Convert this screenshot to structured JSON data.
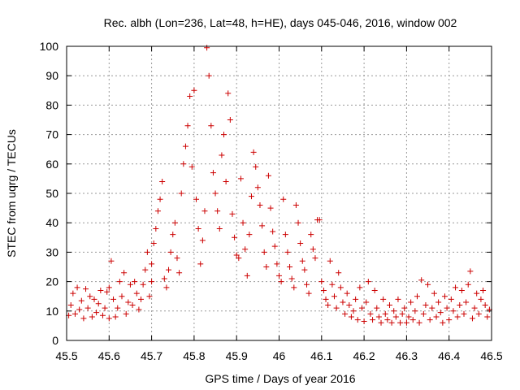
{
  "chart_data": {
    "type": "scatter",
    "title": "Rec. albh (Lon=236, Lat=48, h=HE), days 045-046, 2016, window 002",
    "xlabel": "GPS time / Days of year 2016",
    "ylabel": "STEC from uqrg / TECUs",
    "xlim": [
      45.5,
      46.5
    ],
    "ylim": [
      0,
      100
    ],
    "xticks": [
      "45.5",
      "45.6",
      "45.7",
      "45.8",
      "45.9",
      "46",
      "46.1",
      "46.2",
      "46.3",
      "46.4",
      "46.5"
    ],
    "yticks": [
      "0",
      "10",
      "20",
      "30",
      "40",
      "50",
      "60",
      "70",
      "80",
      "90",
      "100"
    ],
    "grid": true,
    "marker": "plus",
    "color": "#cc0000",
    "series": [
      {
        "name": "STEC",
        "points": [
          [
            45.505,
            8.5
          ],
          [
            45.51,
            12
          ],
          [
            45.515,
            16
          ],
          [
            45.52,
            9
          ],
          [
            45.525,
            18
          ],
          [
            45.53,
            10.5
          ],
          [
            45.535,
            13.5
          ],
          [
            45.54,
            7.5
          ],
          [
            45.545,
            17.5
          ],
          [
            45.55,
            11
          ],
          [
            45.555,
            15
          ],
          [
            45.56,
            8
          ],
          [
            45.565,
            14
          ],
          [
            45.57,
            9.5
          ],
          [
            45.575,
            12.5
          ],
          [
            45.58,
            17
          ],
          [
            45.585,
            8.5
          ],
          [
            45.59,
            11
          ],
          [
            45.595,
            16.5
          ],
          [
            45.6,
            7.5
          ],
          [
            45.6,
            18
          ],
          [
            45.605,
            27
          ],
          [
            45.61,
            14
          ],
          [
            45.615,
            8
          ],
          [
            45.62,
            11
          ],
          [
            45.625,
            20
          ],
          [
            45.63,
            15
          ],
          [
            45.635,
            23
          ],
          [
            45.64,
            9
          ],
          [
            45.645,
            13
          ],
          [
            45.65,
            19
          ],
          [
            45.655,
            12
          ],
          [
            45.66,
            20
          ],
          [
            45.665,
            16
          ],
          [
            45.67,
            10.5
          ],
          [
            45.675,
            14
          ],
          [
            45.68,
            19
          ],
          [
            45.685,
            24
          ],
          [
            45.69,
            30
          ],
          [
            45.695,
            15
          ],
          [
            45.7,
            20
          ],
          [
            45.7,
            26
          ],
          [
            45.705,
            33
          ],
          [
            45.71,
            38
          ],
          [
            45.715,
            44
          ],
          [
            45.72,
            48
          ],
          [
            45.725,
            54
          ],
          [
            45.73,
            21
          ],
          [
            45.735,
            18
          ],
          [
            45.74,
            24
          ],
          [
            45.745,
            30
          ],
          [
            45.75,
            36
          ],
          [
            45.755,
            40
          ],
          [
            45.76,
            28
          ],
          [
            45.765,
            23
          ],
          [
            45.77,
            50
          ],
          [
            45.775,
            60
          ],
          [
            45.78,
            66
          ],
          [
            45.785,
            73
          ],
          [
            45.79,
            83
          ],
          [
            45.795,
            59
          ],
          [
            45.8,
            85
          ],
          [
            45.805,
            48
          ],
          [
            45.81,
            38
          ],
          [
            45.815,
            26
          ],
          [
            45.82,
            34
          ],
          [
            45.825,
            44
          ],
          [
            45.83,
            99.5
          ],
          [
            45.835,
            90
          ],
          [
            45.84,
            73
          ],
          [
            45.845,
            57
          ],
          [
            45.85,
            50
          ],
          [
            45.855,
            44
          ],
          [
            45.86,
            38
          ],
          [
            45.865,
            63
          ],
          [
            45.87,
            70
          ],
          [
            45.875,
            54
          ],
          [
            45.88,
            84
          ],
          [
            45.885,
            75
          ],
          [
            45.89,
            43
          ],
          [
            45.895,
            35
          ],
          [
            45.9,
            29
          ],
          [
            45.905,
            28
          ],
          [
            45.91,
            55
          ],
          [
            45.915,
            40
          ],
          [
            45.92,
            31
          ],
          [
            45.925,
            22
          ],
          [
            45.93,
            36
          ],
          [
            45.935,
            49
          ],
          [
            45.94,
            64
          ],
          [
            45.945,
            59
          ],
          [
            45.95,
            52
          ],
          [
            45.955,
            46
          ],
          [
            45.96,
            39
          ],
          [
            45.965,
            30
          ],
          [
            45.97,
            25
          ],
          [
            45.975,
            56
          ],
          [
            45.98,
            45
          ],
          [
            45.985,
            37
          ],
          [
            45.99,
            32
          ],
          [
            45.995,
            26
          ],
          [
            46.0,
            22
          ],
          [
            46.005,
            20
          ],
          [
            46.01,
            48
          ],
          [
            46.015,
            36
          ],
          [
            46.02,
            30
          ],
          [
            46.025,
            25
          ],
          [
            46.03,
            21
          ],
          [
            46.035,
            18
          ],
          [
            46.04,
            46
          ],
          [
            46.045,
            40
          ],
          [
            46.05,
            33
          ],
          [
            46.055,
            27
          ],
          [
            46.06,
            24
          ],
          [
            46.065,
            19
          ],
          [
            46.07,
            16
          ],
          [
            46.075,
            36
          ],
          [
            46.08,
            31
          ],
          [
            46.085,
            28
          ],
          [
            46.09,
            41
          ],
          [
            46.095,
            41
          ],
          [
            46.1,
            20
          ],
          [
            46.105,
            17
          ],
          [
            46.11,
            14
          ],
          [
            46.115,
            12
          ],
          [
            46.12,
            27
          ],
          [
            46.125,
            19
          ],
          [
            46.13,
            15
          ],
          [
            46.135,
            11
          ],
          [
            46.14,
            23
          ],
          [
            46.145,
            18
          ],
          [
            46.15,
            13
          ],
          [
            46.155,
            9
          ],
          [
            46.16,
            16
          ],
          [
            46.165,
            12
          ],
          [
            46.17,
            8
          ],
          [
            46.175,
            10
          ],
          [
            46.18,
            14
          ],
          [
            46.185,
            7
          ],
          [
            46.19,
            18
          ],
          [
            46.195,
            11
          ],
          [
            46.2,
            6.5
          ],
          [
            46.205,
            13
          ],
          [
            46.21,
            20
          ],
          [
            46.215,
            9
          ],
          [
            46.22,
            7
          ],
          [
            46.225,
            17
          ],
          [
            46.23,
            11
          ],
          [
            46.235,
            8
          ],
          [
            46.24,
            6
          ],
          [
            46.245,
            14
          ],
          [
            46.25,
            9
          ],
          [
            46.255,
            7
          ],
          [
            46.26,
            12
          ],
          [
            46.265,
            6
          ],
          [
            46.27,
            10
          ],
          [
            46.275,
            8
          ],
          [
            46.28,
            14
          ],
          [
            46.285,
            6
          ],
          [
            46.29,
            9
          ],
          [
            46.295,
            11
          ],
          [
            46.3,
            6
          ],
          [
            46.305,
            8
          ],
          [
            46.31,
            13
          ],
          [
            46.315,
            7
          ],
          [
            46.32,
            10
          ],
          [
            46.325,
            15
          ],
          [
            46.33,
            6
          ],
          [
            46.335,
            20.5
          ],
          [
            46.34,
            9
          ],
          [
            46.345,
            12
          ],
          [
            46.35,
            19
          ],
          [
            46.355,
            7
          ],
          [
            46.36,
            11
          ],
          [
            46.365,
            16
          ],
          [
            46.37,
            8
          ],
          [
            46.375,
            13
          ],
          [
            46.38,
            9.5
          ],
          [
            46.385,
            6
          ],
          [
            46.39,
            15
          ],
          [
            46.395,
            11
          ],
          [
            46.4,
            7
          ],
          [
            46.405,
            14
          ],
          [
            46.41,
            10
          ],
          [
            46.415,
            18
          ],
          [
            46.42,
            8
          ],
          [
            46.425,
            12
          ],
          [
            46.43,
            17
          ],
          [
            46.435,
            9
          ],
          [
            46.44,
            13
          ],
          [
            46.445,
            19
          ],
          [
            46.45,
            23.5
          ],
          [
            46.455,
            7.5
          ],
          [
            46.46,
            11
          ],
          [
            46.465,
            16
          ],
          [
            46.47,
            9
          ],
          [
            46.475,
            14
          ],
          [
            46.48,
            17
          ],
          [
            46.485,
            12
          ],
          [
            46.49,
            8
          ],
          [
            46.495,
            10.5
          ]
        ]
      }
    ]
  }
}
